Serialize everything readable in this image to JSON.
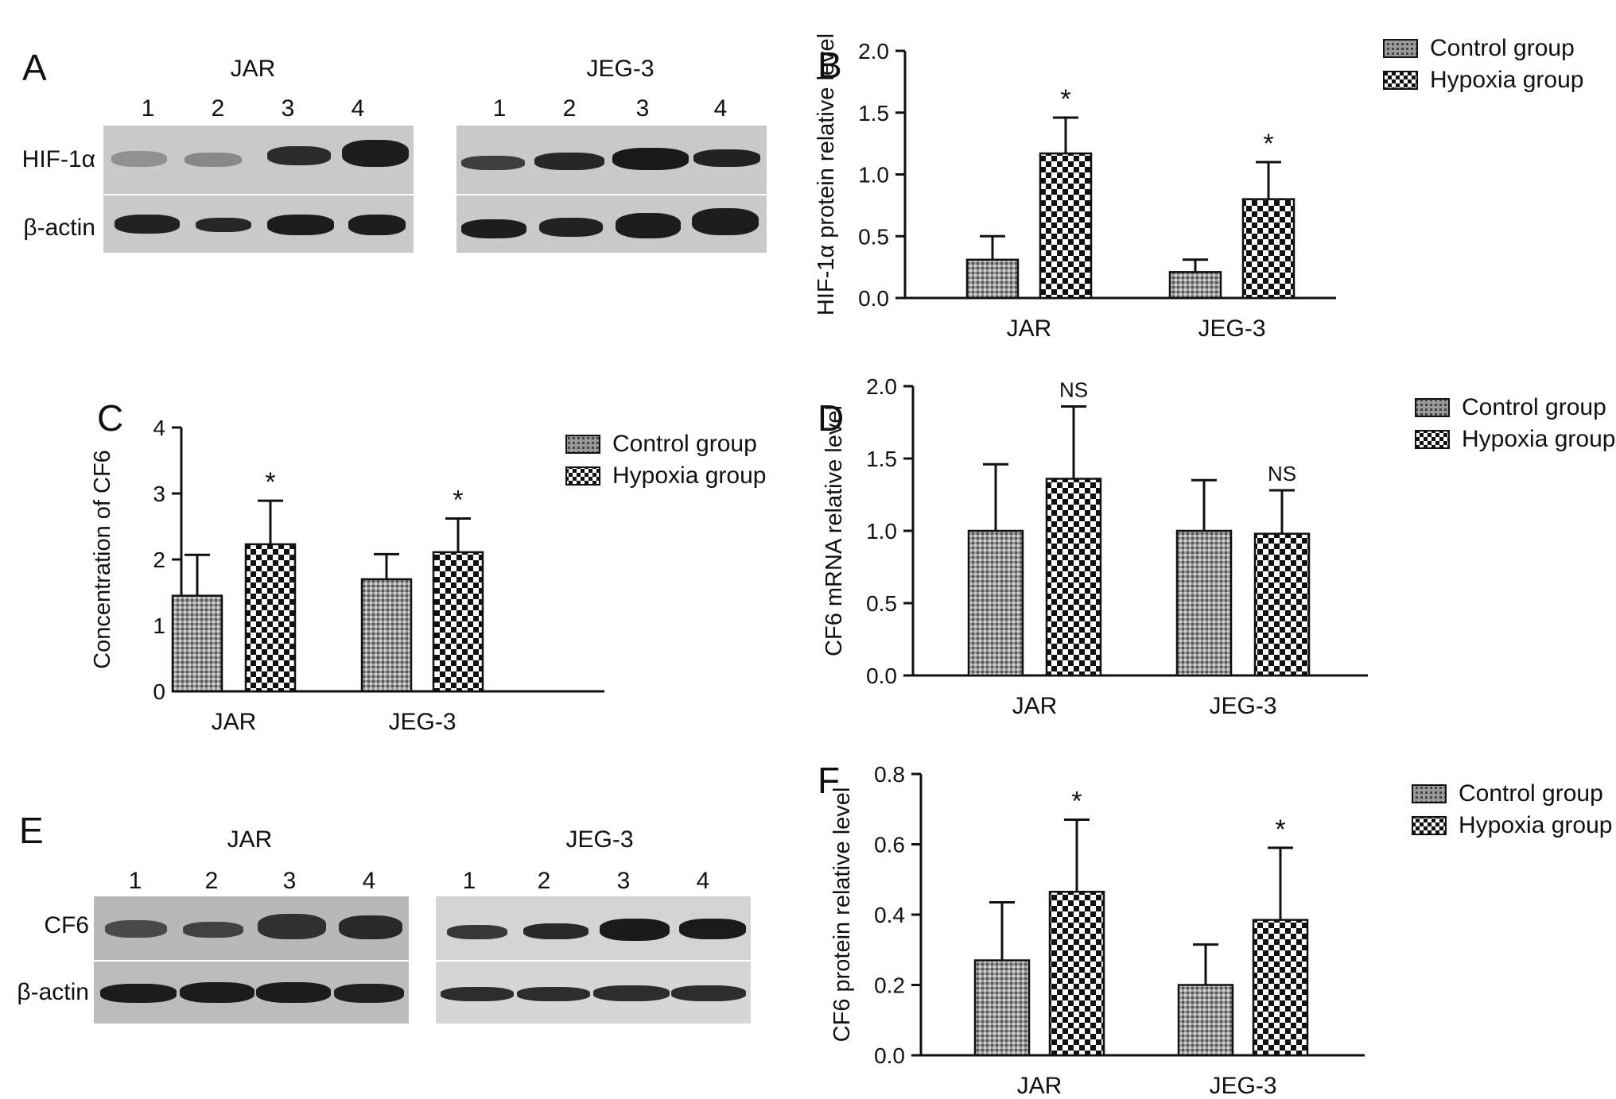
{
  "panels": {
    "A": {
      "letter": "A",
      "blots": [
        {
          "title": "JAR",
          "lanes": [
            "1",
            "2",
            "3",
            "4"
          ]
        },
        {
          "title": "JEG-3",
          "lanes": [
            "1",
            "2",
            "3",
            "4"
          ]
        }
      ],
      "rows": [
        "HIF-1α",
        "β-actin"
      ]
    },
    "E": {
      "letter": "E",
      "blots": [
        {
          "title": "JAR",
          "lanes": [
            "1",
            "2",
            "3",
            "4"
          ]
        },
        {
          "title": "JEG-3",
          "lanes": [
            "1",
            "2",
            "3",
            "4"
          ]
        }
      ],
      "rows": [
        "CF6",
        "β-actin"
      ]
    }
  },
  "chart_data": [
    {
      "panel": "B",
      "type": "bar",
      "ylabel": "HIF-1α protein relative level",
      "categories": [
        "JAR",
        "JEG-3"
      ],
      "ylim": [
        0,
        2.0
      ],
      "yticks": [
        "0.0",
        "0.5",
        "1.0",
        "1.5",
        "2.0"
      ],
      "series": [
        {
          "name": "Control group",
          "values": [
            0.31,
            0.21
          ],
          "errors": [
            0.19,
            0.1
          ]
        },
        {
          "name": "Hypoxia group",
          "values": [
            1.17,
            0.8
          ],
          "errors": [
            0.29,
            0.3
          ]
        }
      ],
      "annotations": [
        [
          "",
          "*"
        ],
        [
          "",
          "*"
        ]
      ],
      "legend": "top-right"
    },
    {
      "panel": "C",
      "type": "bar",
      "ylabel": "Concentration of CF6",
      "categories": [
        "JAR",
        "JEG-3"
      ],
      "ylim": [
        0,
        4
      ],
      "yticks": [
        "0",
        "1",
        "2",
        "3",
        "4"
      ],
      "series": [
        {
          "name": "Control group",
          "values": [
            1.45,
            1.7
          ],
          "errors": [
            0.62,
            0.38
          ]
        },
        {
          "name": "Hypoxia group",
          "values": [
            2.23,
            2.11
          ],
          "errors": [
            0.66,
            0.51
          ]
        }
      ],
      "annotations": [
        [
          "",
          "*"
        ],
        [
          "",
          "*"
        ]
      ],
      "legend": "top-right"
    },
    {
      "panel": "D",
      "type": "bar",
      "ylabel": "CF6 mRNA relative level",
      "categories": [
        "JAR",
        "JEG-3"
      ],
      "ylim": [
        0,
        2.0
      ],
      "yticks": [
        "0.0",
        "0.5",
        "1.0",
        "1.5",
        "2.0"
      ],
      "series": [
        {
          "name": "Control group",
          "values": [
            1.0,
            1.0
          ],
          "errors": [
            0.46,
            0.35
          ]
        },
        {
          "name": "Hypoxia group",
          "values": [
            1.36,
            0.98
          ],
          "errors": [
            0.5,
            0.3
          ]
        }
      ],
      "annotations": [
        [
          "",
          "NS"
        ],
        [
          "",
          "NS"
        ]
      ],
      "legend": "top-right"
    },
    {
      "panel": "F",
      "type": "bar",
      "ylabel": "CF6 protein relative level",
      "categories": [
        "JAR",
        "JEG-3"
      ],
      "ylim": [
        0,
        0.8
      ],
      "yticks": [
        "0.0",
        "0.2",
        "0.4",
        "0.6",
        "0.8"
      ],
      "series": [
        {
          "name": "Control group",
          "values": [
            0.27,
            0.2
          ],
          "errors": [
            0.165,
            0.115
          ]
        },
        {
          "name": "Hypoxia group",
          "values": [
            0.465,
            0.385
          ],
          "errors": [
            0.205,
            0.205
          ]
        }
      ],
      "annotations": [
        [
          "",
          "*"
        ],
        [
          "",
          "*"
        ]
      ],
      "legend": "top-right"
    }
  ]
}
